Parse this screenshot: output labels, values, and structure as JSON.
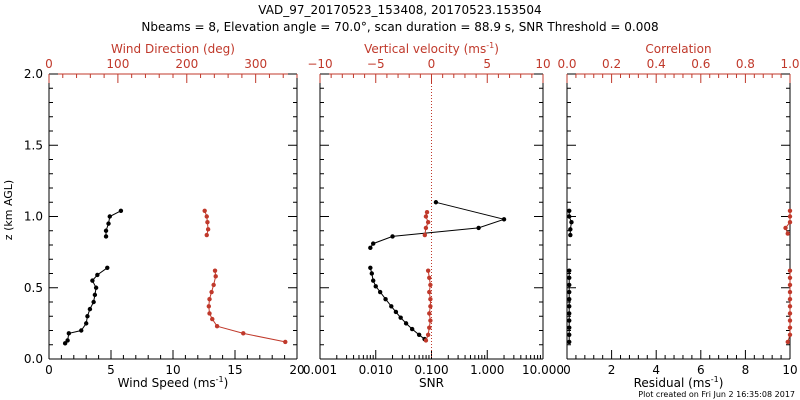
{
  "header": {
    "title": "VAD_97_20170523_153408, 20170523.153504",
    "subtitle": "Nbeams = 8, Elevation angle = 70.0°, scan duration = 88.9 s, SNR Threshold = 0.008"
  },
  "footer": {
    "plot_created": "Plot created on Fri Jun  2 16:35:08 2017"
  },
  "colors": {
    "primary": "#000000",
    "secondary": "#c0392b"
  },
  "chart_data": [
    {
      "type": "line",
      "ylabel": "z (km AGL)",
      "ylim": [
        0,
        2
      ],
      "y_ticks": [
        "0.0",
        "0.5",
        "1.0",
        "1.5",
        "2.0"
      ],
      "x_bottom": {
        "label": "Wind Speed (ms",
        "label_sup": "-1",
        "label_tail": ")",
        "range": [
          0,
          20
        ],
        "ticks": [
          "0",
          "5",
          "10",
          "15",
          "20"
        ]
      },
      "x_top": {
        "label": "Wind Direction (deg)",
        "range": [
          0,
          360
        ],
        "ticks": [
          "0",
          "100",
          "200",
          "300"
        ]
      },
      "series": [
        {
          "axis": "bottom",
          "color": "#000000",
          "segments": [
            [
              [
                1.3,
                0.11
              ],
              [
                1.5,
                0.13
              ],
              [
                1.6,
                0.18
              ],
              [
                2.6,
                0.2
              ],
              [
                3.0,
                0.25
              ],
              [
                3.1,
                0.3
              ],
              [
                3.3,
                0.35
              ],
              [
                3.6,
                0.4
              ],
              [
                3.7,
                0.45
              ],
              [
                3.8,
                0.5
              ],
              [
                3.5,
                0.55
              ],
              [
                3.9,
                0.59
              ],
              [
                4.7,
                0.64
              ]
            ],
            [
              [
                4.6,
                0.86
              ],
              [
                4.6,
                0.9
              ],
              [
                4.8,
                0.95
              ],
              [
                4.9,
                1.0
              ],
              [
                5.8,
                1.04
              ]
            ]
          ]
        },
        {
          "axis": "top",
          "color": "#c0392b",
          "segments": [
            [
              [
                343,
                0.12
              ],
              [
                282,
                0.18
              ],
              [
                244,
                0.23
              ],
              [
                237,
                0.28
              ],
              [
                233,
                0.32
              ],
              [
                232,
                0.37
              ],
              [
                233,
                0.42
              ],
              [
                236,
                0.47
              ],
              [
                239,
                0.52
              ],
              [
                242,
                0.58
              ],
              [
                241,
                0.62
              ]
            ],
            [
              [
                229,
                0.87
              ],
              [
                231,
                0.91
              ],
              [
                230,
                0.96
              ],
              [
                229,
                1.0
              ],
              [
                226,
                1.04
              ]
            ]
          ]
        }
      ]
    },
    {
      "type": "line",
      "ylim": [
        0,
        2
      ],
      "x_bottom": {
        "label": "SNR",
        "scale": "log",
        "range": [
          0.001,
          10
        ],
        "ticks": [
          "0.001",
          "0.010",
          "0.100",
          "1.000",
          "10.000"
        ]
      },
      "x_top": {
        "label": "Vertical velocity (ms",
        "label_sup": "-1",
        "label_tail": ")",
        "range": [
          -10,
          10
        ],
        "ticks": [
          "−10",
          "−5",
          "0",
          "5",
          "10"
        ],
        "zero_line": "dotted"
      },
      "series": [
        {
          "axis": "bottom",
          "color": "#000000",
          "segments": [
            [
              [
                0.075,
                0.14
              ],
              [
                0.06,
                0.17
              ],
              [
                0.045,
                0.21
              ],
              [
                0.035,
                0.25
              ],
              [
                0.028,
                0.29
              ],
              [
                0.023,
                0.33
              ],
              [
                0.019,
                0.37
              ],
              [
                0.015,
                0.42
              ],
              [
                0.012,
                0.47
              ],
              [
                0.01,
                0.51
              ],
              [
                0.009,
                0.55
              ],
              [
                0.0085,
                0.6
              ],
              [
                0.008,
                0.64
              ]
            ],
            [
              [
                0.008,
                0.78
              ],
              [
                0.009,
                0.81
              ],
              [
                0.02,
                0.86
              ],
              [
                0.7,
                0.92
              ],
              [
                2.0,
                0.98
              ],
              [
                0.12,
                1.1
              ]
            ]
          ]
        },
        {
          "axis": "top",
          "color": "#c0392b",
          "segments": [
            [
              [
                -0.5,
                0.13
              ],
              [
                -0.3,
                0.17
              ],
              [
                -0.2,
                0.22
              ],
              [
                -0.1,
                0.27
              ],
              [
                -0.2,
                0.32
              ],
              [
                -0.1,
                0.37
              ],
              [
                -0.1,
                0.42
              ],
              [
                -0.2,
                0.47
              ],
              [
                -0.1,
                0.52
              ],
              [
                -0.2,
                0.57
              ],
              [
                -0.3,
                0.62
              ]
            ],
            [
              [
                -0.6,
                0.87
              ],
              [
                -0.5,
                0.92
              ],
              [
                -0.3,
                0.96
              ],
              [
                -0.5,
                1.0
              ],
              [
                -0.4,
                1.03
              ]
            ]
          ]
        }
      ]
    },
    {
      "type": "line",
      "ylim": [
        0,
        2
      ],
      "x_bottom": {
        "label": "Residual (ms",
        "label_sup": "-1",
        "label_tail": ")",
        "range": [
          0,
          10
        ],
        "ticks": [
          "0",
          "2",
          "4",
          "6",
          "8",
          "10"
        ]
      },
      "x_top": {
        "label": "Correlation",
        "range": [
          0,
          1
        ],
        "ticks": [
          "0.0",
          "0.2",
          "0.4",
          "0.6",
          "0.8",
          "1.0"
        ]
      },
      "series": [
        {
          "axis": "bottom",
          "color": "#000000",
          "segments": [
            [
              [
                0.1,
                0.12
              ],
              [
                0.1,
                0.17
              ],
              [
                0.1,
                0.22
              ],
              [
                0.1,
                0.27
              ],
              [
                0.1,
                0.32
              ],
              [
                0.1,
                0.37
              ],
              [
                0.1,
                0.42
              ],
              [
                0.1,
                0.47
              ],
              [
                0.1,
                0.52
              ],
              [
                0.1,
                0.57
              ],
              [
                0.1,
                0.62
              ]
            ],
            [
              [
                0.15,
                0.87
              ],
              [
                0.15,
                0.91
              ],
              [
                0.2,
                0.96
              ],
              [
                0.1,
                1.0
              ],
              [
                0.1,
                1.04
              ]
            ]
          ]
        },
        {
          "axis": "top",
          "color": "#c0392b",
          "segments": [
            [
              [
                0.99,
                0.12
              ],
              [
                1.0,
                0.17
              ],
              [
                1.0,
                0.22
              ],
              [
                1.0,
                0.27
              ],
              [
                1.0,
                0.32
              ],
              [
                1.0,
                0.37
              ],
              [
                1.0,
                0.42
              ],
              [
                1.0,
                0.47
              ],
              [
                1.0,
                0.52
              ],
              [
                1.0,
                0.57
              ],
              [
                1.0,
                0.62
              ]
            ],
            [
              [
                0.99,
                0.88
              ],
              [
                0.98,
                0.92
              ],
              [
                1.0,
                0.96
              ],
              [
                1.0,
                1.0
              ],
              [
                1.0,
                1.04
              ]
            ]
          ]
        }
      ]
    }
  ]
}
